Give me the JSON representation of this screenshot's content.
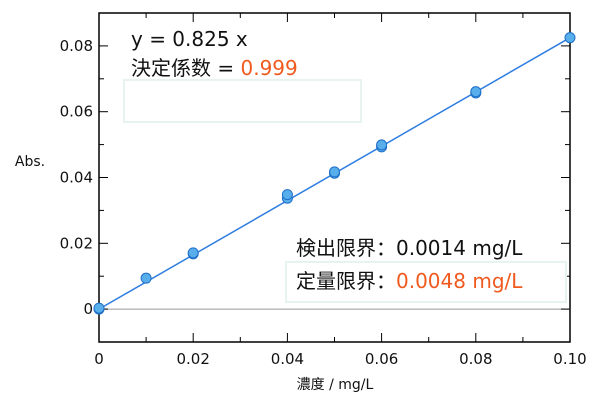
{
  "chart_data": {
    "type": "scatter",
    "xlabel": "濃度 / mg/L",
    "ylabel": "Abs.",
    "xlim": [
      0,
      0.1
    ],
    "ylim": [
      -0.01,
      0.09
    ],
    "x_ticks": [
      "0",
      "0.02",
      "0.04",
      "0.06",
      "0.08",
      "0.10"
    ],
    "x_tick_values": [
      0,
      0.02,
      0.04,
      0.06,
      0.08,
      0.1
    ],
    "y_ticks": [
      "0",
      "0.02",
      "0.04",
      "0.06",
      "0.08"
    ],
    "y_tick_values": [
      0,
      0.02,
      0.04,
      0.06,
      0.08
    ],
    "points": [
      {
        "x": 0,
        "y": 0.0
      },
      {
        "x": 0,
        "y": 0.0003
      },
      {
        "x": 0.01,
        "y": 0.0094
      },
      {
        "x": 0.02,
        "y": 0.0168
      },
      {
        "x": 0.02,
        "y": 0.0171
      },
      {
        "x": 0.04,
        "y": 0.0337
      },
      {
        "x": 0.04,
        "y": 0.0348
      },
      {
        "x": 0.05,
        "y": 0.0413
      },
      {
        "x": 0.05,
        "y": 0.0417
      },
      {
        "x": 0.06,
        "y": 0.0493
      },
      {
        "x": 0.06,
        "y": 0.0499
      },
      {
        "x": 0.08,
        "y": 0.0657
      },
      {
        "x": 0.08,
        "y": 0.0661
      },
      {
        "x": 0.1,
        "y": 0.0825
      }
    ],
    "fit_slope": 0.825,
    "equation_text": "y = 0.825 x",
    "r2_label": "決定係数 = ",
    "r2_value": "0.999",
    "lod_label": "検出限界：",
    "lod_value": "0.0014 mg/L",
    "loq_label": "定量限界：",
    "loq_value": "0.0048 mg/L",
    "grid": false,
    "colors": {
      "line": "#2f7de1",
      "point_fill": "#58aeea",
      "point_stroke": "#1f6fc8",
      "accent": "#f05a1e",
      "zero_line": "#999999"
    }
  }
}
